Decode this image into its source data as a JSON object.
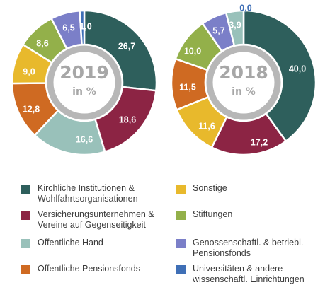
{
  "colors": {
    "kirchliche": "#2e5f5c",
    "versicherung": "#8c2444",
    "oeffentliche_hand": "#99c1ba",
    "pensionsfonds": "#cf6a22",
    "sonstige": "#e8b92c",
    "stiftungen": "#93b04a",
    "genossenschaft": "#7b7fc8",
    "universitaeten": "#3f6fb6",
    "hole_ring": "#b7b7b7"
  },
  "chart_data": [
    {
      "type": "pie",
      "title": "2019",
      "subtitle": "in %",
      "categories": [
        "Kirchliche Institutionen & Wohlfahrtsorganisationen",
        "Versicherungsunternehmen & Vereine auf Gegenseitigkeit",
        "Öffentliche Hand",
        "Öffentliche Pensionsfonds",
        "Sonstige",
        "Stiftungen",
        "Genossenschaftl. & betriebl. Pensionsfonds",
        "Universitäten & andere wissenschaftl. Einrichtungen"
      ],
      "values": [
        26.7,
        18.6,
        16.6,
        12.8,
        9.0,
        8.6,
        6.5,
        1.0
      ],
      "labels": [
        "26,7",
        "18,6",
        "16,6",
        "12,8",
        "9,0",
        "8,6",
        "6,5",
        "1,0"
      ]
    },
    {
      "type": "pie",
      "title": "2018",
      "subtitle": "in %",
      "categories": [
        "Kirchliche Institutionen & Wohlfahrtsorganisationen",
        "Versicherungsunternehmen & Vereine auf Gegenseitigkeit",
        "Sonstige",
        "Öffentliche Pensionsfonds",
        "Stiftungen",
        "Genossenschaftl. & betriebl. Pensionsfonds",
        "Öffentliche Hand",
        "Universitäten & andere wissenschaftl. Einrichtungen"
      ],
      "values": [
        40.0,
        17.2,
        11.6,
        11.5,
        10.0,
        5.7,
        3.9,
        0.0
      ],
      "labels": [
        "40,0",
        "17,2",
        "11,6",
        "11,5",
        "10,0",
        "5,7",
        "3,9",
        "0,0"
      ]
    }
  ],
  "legend": [
    {
      "key": "kirchliche",
      "label": "Kirchliche Institutionen &\nWohlfahrtsorganisationen"
    },
    {
      "key": "sonstige",
      "label": "Sonstige"
    },
    {
      "key": "versicherung",
      "label": "Versicherungsunternehmen &\nVereine auf Gegenseitigkeit"
    },
    {
      "key": "stiftungen",
      "label": "Stiftungen"
    },
    {
      "key": "oeffentliche_hand",
      "label": "Öffentliche Hand"
    },
    {
      "key": "genossenschaft",
      "label": "Genossenschaftl. & betriebl.\nPensionsfonds"
    },
    {
      "key": "pensionsfonds",
      "label": "Öffentliche Pensionsfonds"
    },
    {
      "key": "universitaeten",
      "label": "Universitäten & andere\nwissenschaftl. Einrichtungen"
    }
  ]
}
